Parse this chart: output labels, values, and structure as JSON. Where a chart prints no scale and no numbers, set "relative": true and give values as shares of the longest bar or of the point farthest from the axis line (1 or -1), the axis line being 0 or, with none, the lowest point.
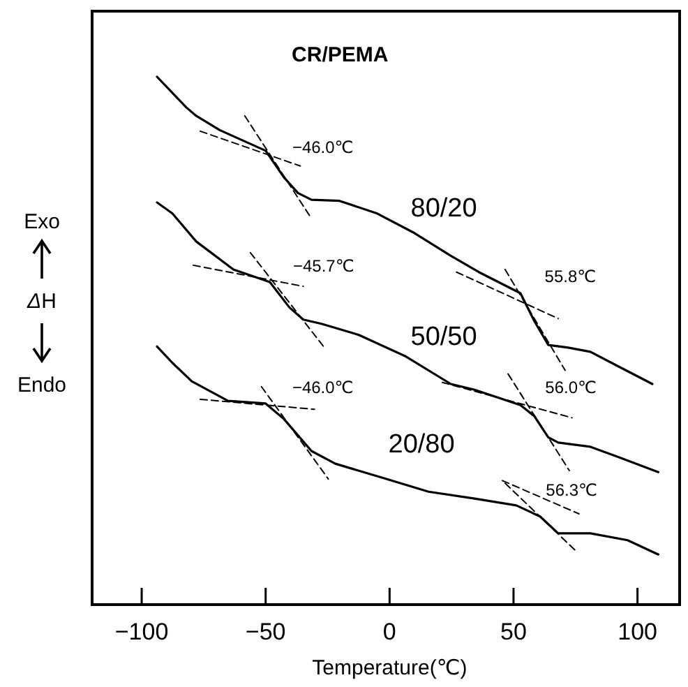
{
  "chart_data": {
    "type": "line",
    "relative": true,
    "title": "CR/PEMA",
    "xlabel": "Temperature(℃)",
    "ylabel": "ΔH",
    "xlim": [
      -120,
      117
    ],
    "xticks": [
      {
        "value": -100,
        "label": "−100"
      },
      {
        "value": -50,
        "label": "−50"
      },
      0,
      50,
      100
    ],
    "grid": false,
    "tick_labels": "x",
    "series": [
      {
        "name": "80/20",
        "color": "#000000",
        "line_style": "solid",
        "x": [
          -93.8,
          -82,
          -78,
          -68.5,
          -50,
          -42.7,
          -37,
          -31.5,
          -20.2,
          -5,
          10,
          24.7,
          36,
          52.8,
          58.4,
          64,
          72,
          81,
          92,
          106
        ],
        "values": [
          1,
          0.942,
          0.926,
          0.899,
          0.86,
          0.81,
          0.78,
          0.767,
          0.765,
          0.741,
          0.704,
          0.661,
          0.63,
          0.59,
          0.537,
          0.492,
          0.487,
          0.479,
          0.452,
          0.418
        ]
      },
      {
        "name": "50/50",
        "color": "#000000",
        "line_style": "solid",
        "x": [
          -93.8,
          -87.6,
          -78,
          -63,
          -48.3,
          -40.4,
          -34.8,
          -27.5,
          -12.4,
          6.2,
          24.7,
          34.3,
          52.8,
          58.4,
          64,
          68,
          81,
          92,
          108.4
        ],
        "values": [
          0.762,
          0.741,
          0.688,
          0.635,
          0.611,
          0.563,
          0.54,
          0.532,
          0.511,
          0.471,
          0.418,
          0.407,
          0.378,
          0.357,
          0.317,
          0.307,
          0.299,
          0.28,
          0.251
        ]
      },
      {
        "name": "20/80",
        "color": "#000000",
        "line_style": "solid",
        "x": [
          -93.8,
          -87.6,
          -79.8,
          -65.2,
          -50,
          -42.7,
          -31.5,
          -21.9,
          -3.4,
          15.7,
          34.3,
          51.1,
          60.7,
          68,
          81,
          96,
          108.4
        ],
        "values": [
          0.489,
          0.458,
          0.423,
          0.386,
          0.381,
          0.352,
          0.291,
          0.267,
          0.241,
          0.214,
          0.201,
          0.188,
          0.167,
          0.135,
          0.135,
          0.122,
          0.095
        ]
      },
      {
        "color": "#000000",
        "line_style": "dashed",
        "x": [
          -76.4,
          -36
        ],
        "values": [
          0.897,
          0.831
        ]
      },
      {
        "color": "#000000",
        "line_style": "dashed",
        "x": [
          -58.4,
          -32
        ],
        "values": [
          0.926,
          0.735
        ]
      },
      {
        "color": "#000000",
        "line_style": "dashed",
        "x": [
          27,
          68
        ],
        "values": [
          0.63,
          0.542
        ]
      },
      {
        "color": "#000000",
        "line_style": "dashed",
        "x": [
          46.6,
          70.8
        ],
        "values": [
          0.635,
          0.444
        ]
      },
      {
        "color": "#000000",
        "line_style": "dashed",
        "x": [
          -79.2,
          -34.8
        ],
        "values": [
          0.643,
          0.603
        ]
      },
      {
        "color": "#000000",
        "line_style": "dashed",
        "x": [
          -56.2,
          -25.8
        ],
        "values": [
          0.667,
          0.484
        ]
      },
      {
        "color": "#000000",
        "line_style": "dashed",
        "x": [
          21.3,
          73.6
        ],
        "values": [
          0.421,
          0.354
        ]
      },
      {
        "color": "#000000",
        "line_style": "dashed",
        "x": [
          47.8,
          72.5
        ],
        "values": [
          0.437,
          0.254
        ]
      },
      {
        "color": "#000000",
        "line_style": "dashed",
        "x": [
          -76.4,
          -30.3
        ],
        "values": [
          0.389,
          0.37
        ]
      },
      {
        "color": "#000000",
        "line_style": "dashed",
        "x": [
          -51.7,
          -24.7
        ],
        "values": [
          0.413,
          0.238
        ]
      },
      {
        "color": "#000000",
        "line_style": "dashed",
        "x": [
          45.5,
          76.4
        ],
        "values": [
          0.235,
          0.172
        ]
      },
      {
        "color": "#000000",
        "line_style": "dashed",
        "x": [
          46.6,
          75.3
        ],
        "values": [
          0.23,
          0.101
        ]
      }
    ],
    "annotations": [
      {
        "text": "−46.0℃",
        "x": -46.0,
        "y": 0.83
      },
      {
        "text": "55.8℃",
        "x": 55.8,
        "y": 0.585
      },
      {
        "text": "−45.7℃",
        "x": -45.7,
        "y": 0.605
      },
      {
        "text": "56.0℃",
        "x": 56.0,
        "y": 0.375
      },
      {
        "text": "−46.0℃",
        "x": -46.0,
        "y": 0.375
      },
      {
        "text": "56.3℃",
        "x": 56.3,
        "y": 0.18
      },
      "Exo",
      "Endo"
    ]
  }
}
